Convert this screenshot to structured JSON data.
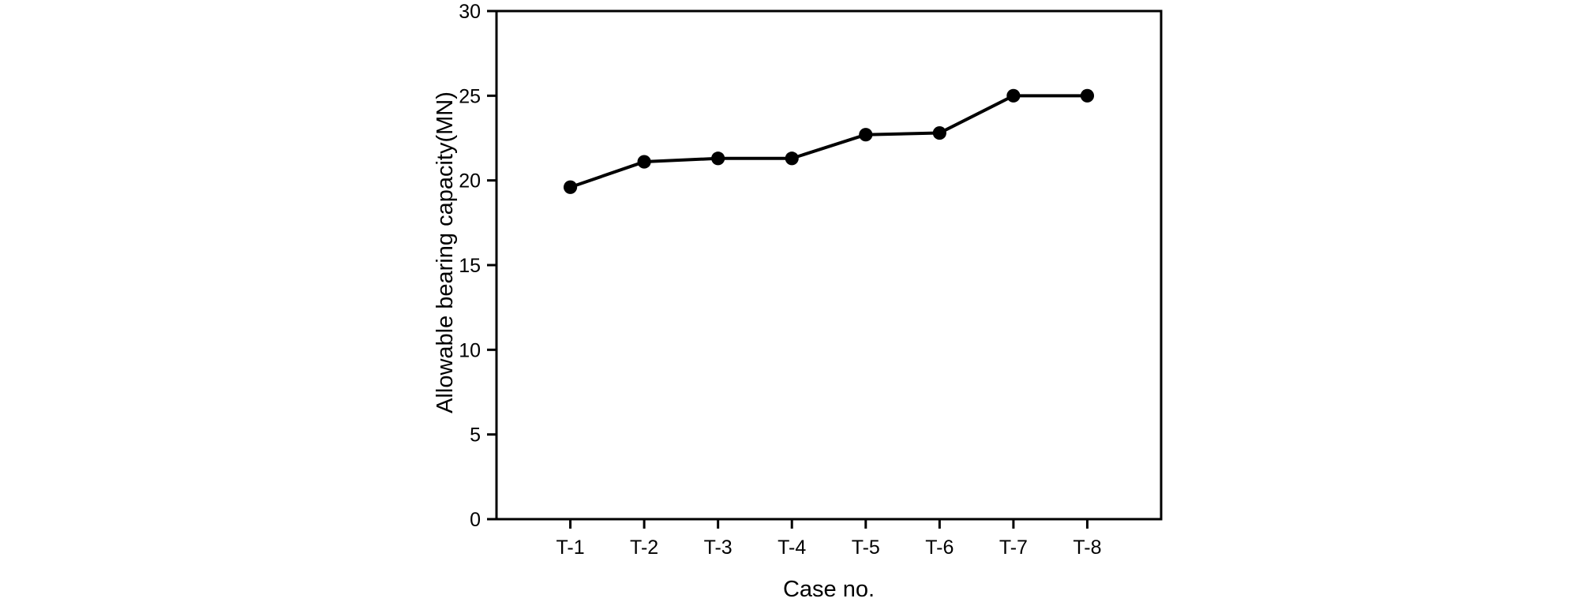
{
  "figure": {
    "background_color": "#ffffff",
    "foreground_color": "#000000"
  },
  "chart_data": {
    "type": "line",
    "title": "",
    "categories": [
      "T-1",
      "T-2",
      "T-3",
      "T-4",
      "T-5",
      "T-6",
      "T-7",
      "T-8"
    ],
    "series": [
      {
        "name": "Allowable bearing capacity",
        "values": [
          19.6,
          21.1,
          21.3,
          21.3,
          22.7,
          22.8,
          25.0,
          25.0
        ]
      }
    ],
    "xlabel": "Case no.",
    "ylabel": "Allowable bearing capacity(MN)",
    "ylim": [
      0,
      30
    ],
    "yticks": [
      0,
      5,
      10,
      15,
      20,
      25,
      30
    ],
    "grid": false,
    "legend_position": "none",
    "frame": "box",
    "tick_direction": "out",
    "marker": "filled-circle",
    "line_color": "#000000",
    "marker_color": "#000000"
  }
}
